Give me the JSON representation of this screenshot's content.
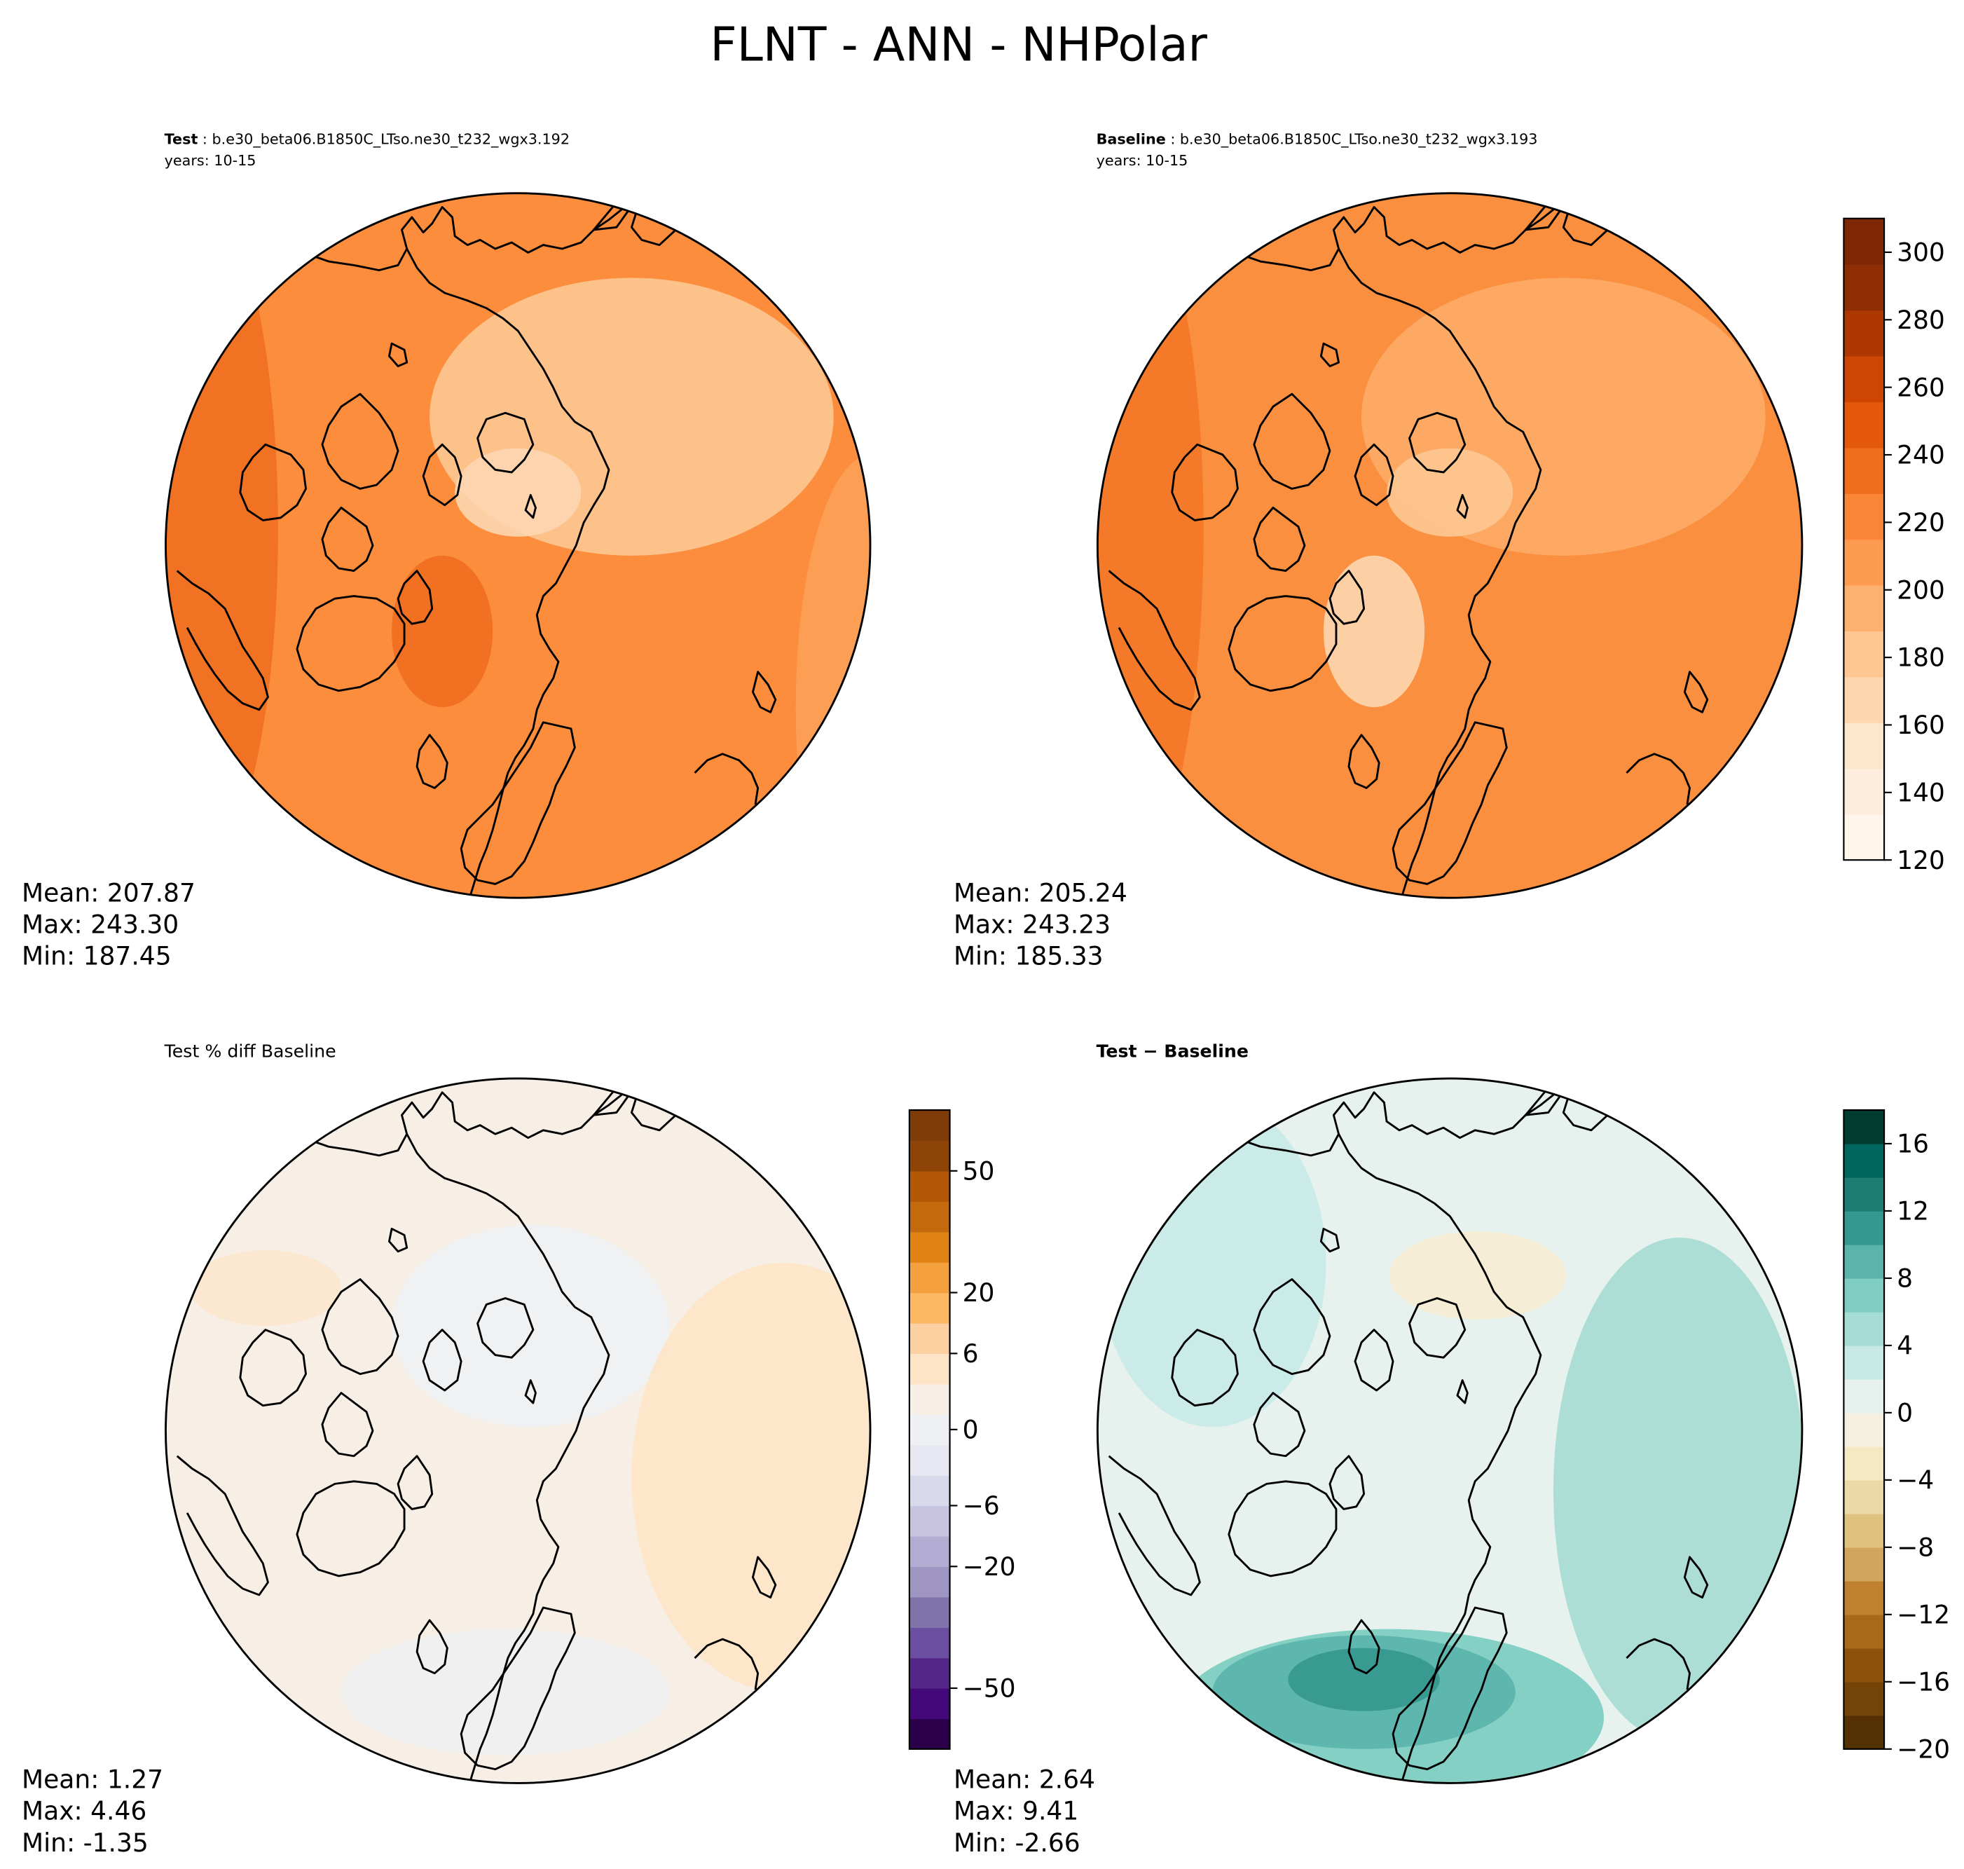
{
  "figure": {
    "title": "FLNT - ANN - NHPolar"
  },
  "panels": [
    {
      "id": "test",
      "label_bold": "Test",
      "label_rest": " : b.e30_beta06.B1850C_LTso.ne30_t232_wgx3.192",
      "subline": "years: 10-15",
      "stats": {
        "mean": "Mean: 207.87",
        "max": "Max: 243.30",
        "min": "Min: 187.45"
      }
    },
    {
      "id": "baseline",
      "label_bold": "Baseline",
      "label_rest": " : b.e30_beta06.B1850C_LTso.ne30_t232_wgx3.193",
      "subline": "years: 10-15",
      "stats": {
        "mean": "Mean: 205.24",
        "max": "Max: 243.23",
        "min": "Min: 185.33"
      }
    },
    {
      "id": "pctdiff",
      "label_plain": "Test % diff Baseline",
      "stats": {
        "mean": "Mean:  1.27",
        "max": "Max:  4.46",
        "min": "Min: -1.35"
      }
    },
    {
      "id": "diff",
      "label_bold": "Test − Baseline",
      "stats": {
        "mean": "Mean:  2.64",
        "max": "Max:  9.41",
        "min": "Min: -2.66"
      }
    }
  ],
  "colorbars": {
    "abs": {
      "ticks": [
        "120",
        "140",
        "160",
        "180",
        "200",
        "220",
        "240",
        "260",
        "280",
        "300"
      ],
      "range": [
        120,
        310
      ],
      "colors": [
        "#fff5eb",
        "#feeddc",
        "#fee6ce",
        "#fdd6b0",
        "#fdc692",
        "#fdb171",
        "#fd9b51",
        "#f98536",
        "#f06d1e",
        "#e4580b",
        "#cf4602",
        "#ad3803",
        "#8f2d04",
        "#7f2704"
      ]
    },
    "pct": {
      "ticks": [
        "−50",
        "−20",
        "−6",
        "0",
        "6",
        "20",
        "50"
      ],
      "colors": [
        "#2d004b",
        "#43087a",
        "#542788",
        "#6a4fa0",
        "#8073ac",
        "#9e95c2",
        "#b2abd2",
        "#c8c4e0",
        "#d8daeb",
        "#e7e8f1",
        "#eff0f3",
        "#f7efe6",
        "#fde4c7",
        "#fdd0a2",
        "#fdb863",
        "#f5a03f",
        "#e08214",
        "#c26a0d",
        "#b35806",
        "#8d4406",
        "#7f3b08"
      ]
    },
    "diff": {
      "ticks": [
        "−20",
        "−16",
        "−12",
        "−8",
        "−4",
        "0",
        "4",
        "8",
        "12",
        "16"
      ],
      "range": [
        -20,
        18
      ],
      "colors": [
        "#543005",
        "#744308",
        "#8c510a",
        "#a86a19",
        "#bf812d",
        "#d3a55c",
        "#dfc27d",
        "#ecd9a6",
        "#f6e8c3",
        "#f5f0e0",
        "#e7f2ef",
        "#c7eae5",
        "#a5dcd3",
        "#80cdc1",
        "#5ab4ac",
        "#35978f",
        "#1d7d74",
        "#01665e",
        "#003c30"
      ]
    },
    "map_fill": {
      "test": "#fb8d3d",
      "baseline": "#fb8f40",
      "pctdiff": "#f7efe6",
      "diff": "#e7f2ef"
    },
    "map_regions": {
      "test": [
        "#f06d1e",
        "#fdab66",
        "#fdc692",
        "#fdd6b0"
      ],
      "baseline": [
        "#f37423",
        "#fdac67",
        "#fdc692",
        "#fdd6b0"
      ],
      "pctdiff": [
        "#eff0f3",
        "#fde4c7"
      ],
      "diff": [
        "#c7eae5",
        "#a5dcd3",
        "#80cdc1",
        "#5ab4ac",
        "#35978f",
        "#f6ecd2"
      ]
    }
  }
}
